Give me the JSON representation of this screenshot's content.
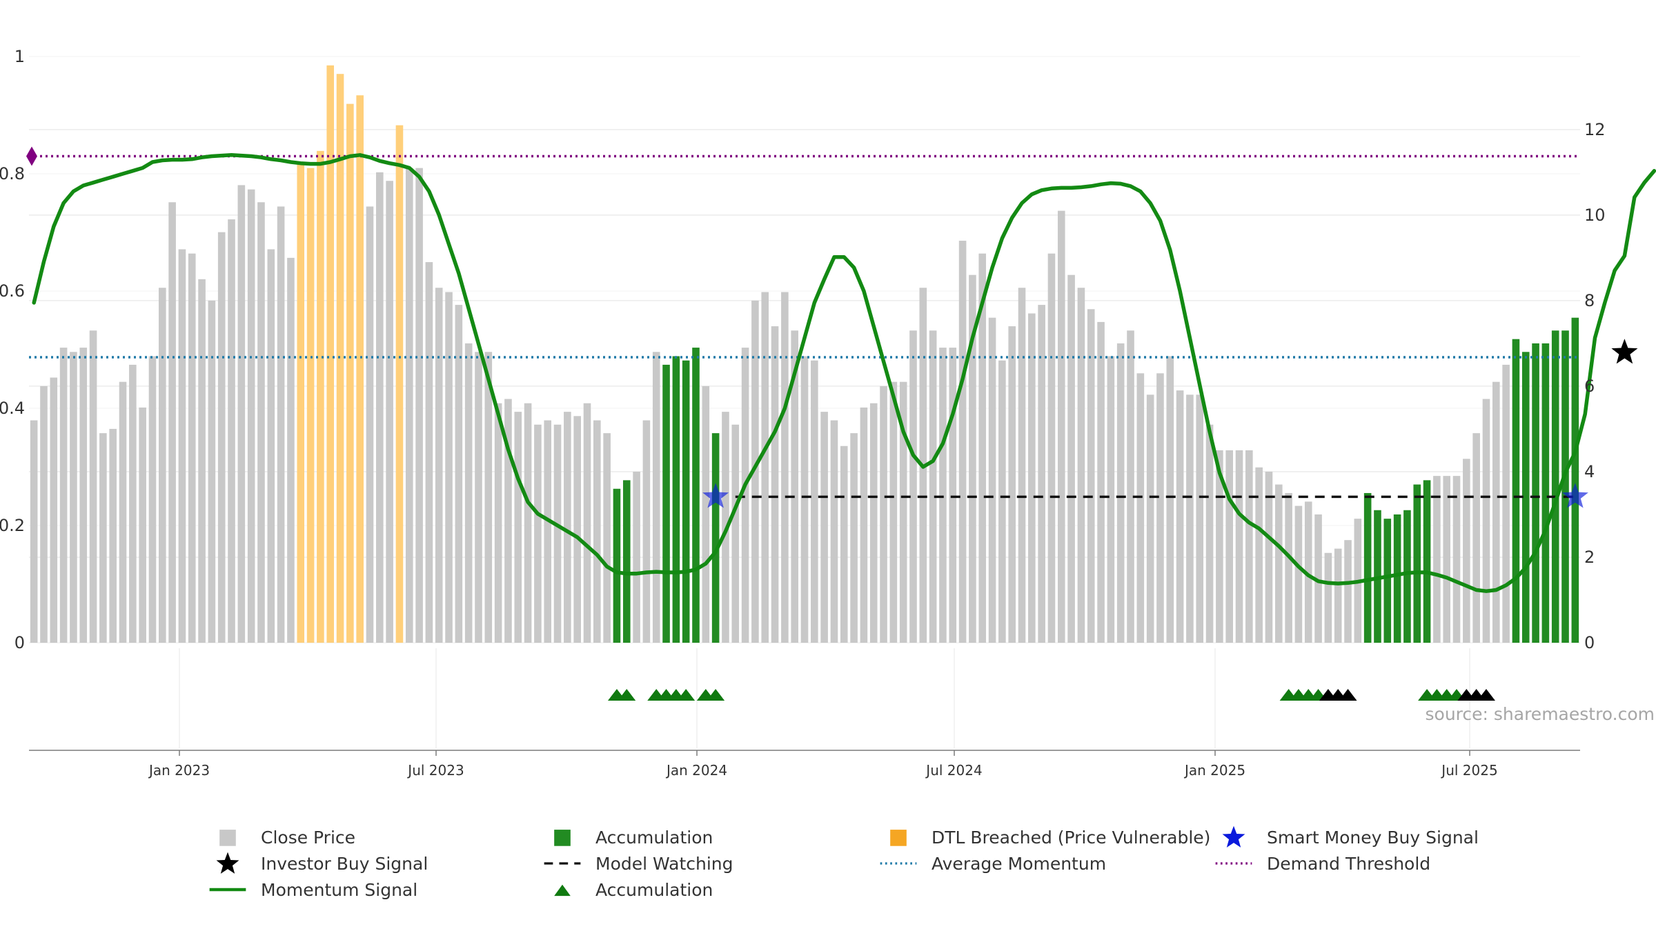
{
  "chart_data": {
    "type": "bar",
    "source": "source: sharemaestro.com",
    "y_left": {
      "ticks": [
        "0",
        "0.2",
        "0.4",
        "0.6",
        "0.8",
        "1"
      ],
      "range": [
        0,
        1
      ]
    },
    "y_right": {
      "ticks": [
        "0",
        "2",
        "4",
        "6",
        "8",
        "10",
        "12"
      ],
      "range": [
        0,
        13.9
      ]
    },
    "x_labels": [
      "Jan 2023",
      "Jul 2023",
      "Jan 2024",
      "Jul 2024",
      "Jan 2025",
      "Jul 2025"
    ],
    "price_bars": [
      5.2,
      6.0,
      6.2,
      6.9,
      6.8,
      6.9,
      7.3,
      4.9,
      5.0,
      6.1,
      6.5,
      5.5,
      6.7,
      8.3,
      10.3,
      9.2,
      9.1,
      8.5,
      8.0,
      9.6,
      9.9,
      10.7,
      10.6,
      10.3,
      9.2,
      10.2,
      9.0,
      11.2,
      11.1,
      11.5,
      13.5,
      13.3,
      12.6,
      12.8,
      10.2,
      11.0,
      10.8,
      12.1,
      11.1,
      11.1,
      8.9,
      8.3,
      8.2,
      7.9,
      7.0,
      6.8,
      6.8,
      5.6,
      5.7,
      5.4,
      5.6,
      5.1,
      5.2,
      5.1,
      5.4,
      5.3,
      5.6,
      5.2,
      4.9,
      3.6,
      3.8,
      4.0,
      5.2,
      6.8,
      6.5,
      6.7,
      6.6,
      6.9,
      6.0,
      4.9,
      5.4,
      5.1,
      6.9,
      8.0,
      8.2,
      7.4,
      8.2,
      7.3,
      6.7,
      6.6,
      5.4,
      5.2,
      4.6,
      4.9,
      5.5,
      5.6,
      6.0,
      6.1,
      6.1,
      7.3,
      8.3,
      7.3,
      6.9,
      6.9,
      9.4,
      8.6,
      9.1,
      7.6,
      6.6,
      7.4,
      8.3,
      7.7,
      7.9,
      9.1,
      10.1,
      8.6,
      8.3,
      7.8,
      7.5,
      6.7,
      7.0,
      7.3,
      6.3,
      5.8,
      6.3,
      6.7,
      5.9,
      5.8,
      5.8,
      5.1,
      4.5,
      4.5,
      4.5,
      4.5,
      4.1,
      4.0,
      3.7,
      3.5,
      3.2,
      3.3,
      3.0,
      2.1,
      2.2,
      2.4,
      2.9,
      3.5,
      3.1,
      2.9,
      3.0,
      3.1,
      3.7,
      3.8,
      3.9,
      3.9,
      3.9,
      4.3,
      4.9,
      5.7,
      6.1,
      6.5,
      7.1,
      6.8,
      7.0,
      7.0,
      7.3,
      7.3,
      7.6
    ],
    "bar_category": "GGGGGGGGGGGGGGGGGGGGGGGGGGGOOOOOOOGGGOGGGGGGGGGGGGGGGGGGGGGAAGGGAAAAGAGGGGGGGGGGGGGGGGGGGGGGGGGGGGGGGGGGGGGGGGGGGGGGGGGGGGGGGGGGGGGGGGGAAAAAAAGGGGGGGGAAAAAAAGGGGGGGGGGG",
    "momentum_signal": [
      0.58,
      0.65,
      0.71,
      0.75,
      0.77,
      0.78,
      0.785,
      0.79,
      0.795,
      0.8,
      0.805,
      0.81,
      0.82,
      0.823,
      0.824,
      0.824,
      0.825,
      0.828,
      0.83,
      0.831,
      0.832,
      0.831,
      0.83,
      0.828,
      0.825,
      0.823,
      0.82,
      0.818,
      0.817,
      0.817,
      0.82,
      0.825,
      0.83,
      0.832,
      0.828,
      0.822,
      0.818,
      0.815,
      0.81,
      0.795,
      0.77,
      0.73,
      0.68,
      0.63,
      0.57,
      0.51,
      0.45,
      0.39,
      0.33,
      0.28,
      0.24,
      0.22,
      0.21,
      0.2,
      0.19,
      0.18,
      0.165,
      0.15,
      0.13,
      0.12,
      0.118,
      0.118,
      0.12,
      0.121,
      0.12,
      0.12,
      0.121,
      0.125,
      0.135,
      0.155,
      0.19,
      0.23,
      0.27,
      0.3,
      0.33,
      0.36,
      0.4,
      0.46,
      0.52,
      0.58,
      0.62,
      0.658,
      0.658,
      0.64,
      0.6,
      0.54,
      0.48,
      0.42,
      0.36,
      0.32,
      0.3,
      0.31,
      0.34,
      0.39,
      0.45,
      0.52,
      0.58,
      0.64,
      0.69,
      0.725,
      0.75,
      0.765,
      0.772,
      0.775,
      0.776,
      0.776,
      0.777,
      0.779,
      0.782,
      0.784,
      0.783,
      0.779,
      0.77,
      0.75,
      0.72,
      0.67,
      0.6,
      0.52,
      0.44,
      0.36,
      0.29,
      0.245,
      0.22,
      0.205,
      0.195,
      0.18,
      0.165,
      0.148,
      0.13,
      0.115,
      0.105,
      0.102,
      0.101,
      0.102,
      0.104,
      0.107,
      0.11,
      0.113,
      0.116,
      0.119,
      0.12,
      0.12,
      0.116,
      0.111,
      0.104,
      0.097,
      0.09,
      0.088,
      0.09,
      0.098,
      0.11,
      0.128,
      0.155,
      0.192,
      0.24,
      0.29,
      0.325,
      0.39,
      0.52,
      0.58,
      0.635,
      0.66,
      0.76,
      0.785,
      0.805
    ]
  },
  "markers": {
    "demand_threshold": 0.83,
    "average_momentum": 0.487,
    "model_watching": 0.249,
    "model_watching_start": 71,
    "model_watching_end": 156,
    "smart_money_buy": [
      [
        69,
        0.249
      ],
      [
        156,
        0.249
      ]
    ],
    "investor_buy": [
      [
        161,
        0.495
      ]
    ],
    "demand_diamond": [
      0,
      0.83
    ],
    "accumulation_triangles": [
      {
        "index": 59,
        "color": "green"
      },
      {
        "index": 60,
        "color": "green"
      },
      {
        "index": 63,
        "color": "green"
      },
      {
        "index": 64,
        "color": "green"
      },
      {
        "index": 65,
        "color": "green"
      },
      {
        "index": 66,
        "color": "green"
      },
      {
        "index": 68,
        "color": "green"
      },
      {
        "index": 69,
        "color": "green"
      },
      {
        "index": 127,
        "color": "green"
      },
      {
        "index": 128,
        "color": "green"
      },
      {
        "index": 129,
        "color": "green"
      },
      {
        "index": 130,
        "color": "green"
      },
      {
        "index": 131,
        "color": "black"
      },
      {
        "index": 132,
        "color": "black"
      },
      {
        "index": 133,
        "color": "black"
      },
      {
        "index": 141,
        "color": "green"
      },
      {
        "index": 142,
        "color": "green"
      },
      {
        "index": 143,
        "color": "green"
      },
      {
        "index": 144,
        "color": "green"
      },
      {
        "index": 145,
        "color": "black"
      },
      {
        "index": 146,
        "color": "black"
      },
      {
        "index": 147,
        "color": "black"
      }
    ]
  },
  "colors": {
    "price": "#c8c8c8",
    "accumulation_bar": "#228b22",
    "dtl": "#ffcf7a",
    "momentum": "#138a13",
    "average": "#1f7aa8",
    "demand": "#800080",
    "smart_money": "#0a1adc",
    "investor": "#000000",
    "triangle_green": "#107a10",
    "triangle_black": "#000000"
  },
  "legend": [
    {
      "label": "Close Price",
      "symbol": "grey-square"
    },
    {
      "label": "Accumulation",
      "symbol": "green-square"
    },
    {
      "label": "DTL Breached (Price Vulnerable)",
      "symbol": "orange-square"
    },
    {
      "label": "Smart Money Buy Signal",
      "symbol": "blue-star"
    },
    {
      "label": "Investor Buy Signal",
      "symbol": "black-star"
    },
    {
      "label": "Model Watching",
      "symbol": "black-dash"
    },
    {
      "label": "Average Momentum",
      "symbol": "blue-dot"
    },
    {
      "label": "Demand Threshold",
      "symbol": "purple-dot"
    },
    {
      "label": "Momentum Signal",
      "symbol": "green-line"
    },
    {
      "label": "Accumulation",
      "symbol": "green-triangle"
    }
  ]
}
